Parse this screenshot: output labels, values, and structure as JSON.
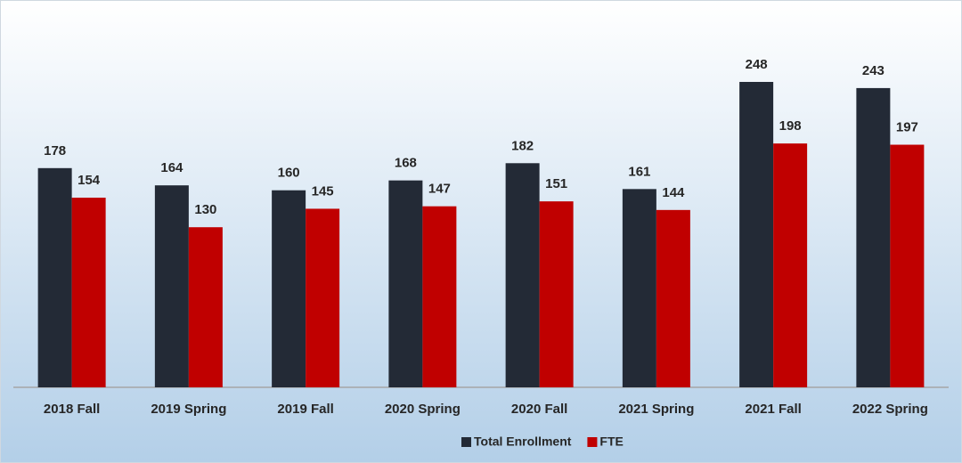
{
  "chart_data": {
    "type": "bar",
    "categories": [
      "2018 Fall",
      "2019 Spring",
      "2019 Fall",
      "2020 Spring",
      "2020 Fall",
      "2021 Spring",
      "2021 Fall",
      "2022 Spring"
    ],
    "series": [
      {
        "name": "Total Enrollment",
        "color": "#232a36",
        "values": [
          178,
          164,
          160,
          168,
          182,
          161,
          248,
          243
        ]
      },
      {
        "name": "FTE",
        "color": "#c00000",
        "values": [
          154,
          130,
          145,
          147,
          151,
          144,
          198,
          197
        ]
      }
    ],
    "legend": "bottom"
  }
}
